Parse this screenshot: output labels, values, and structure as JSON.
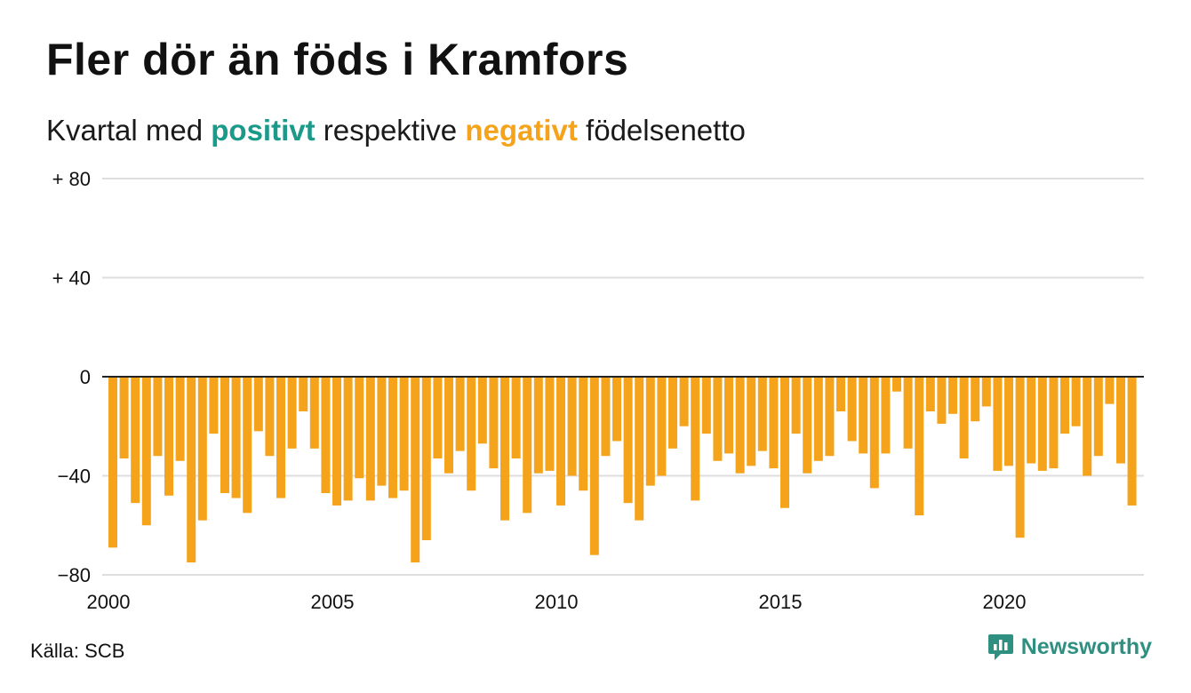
{
  "title": "Fler dör än föds i Kramfors",
  "subtitle": {
    "prefix": "Kvartal med ",
    "positive": "positivt",
    "middle": " respektive ",
    "negative": "negativt",
    "suffix": " födelsenetto"
  },
  "source": "Källa: SCB",
  "brand": "Newsworthy",
  "colors": {
    "bar": "#f5a31a",
    "positive": "#1b9a8a",
    "negative": "#f5a31a",
    "grid": "#dedede",
    "brand": "#2f8f80"
  },
  "chart_data": {
    "type": "bar",
    "x_start": "2000 Q1",
    "frequency": "quarterly",
    "values": [
      -69,
      -33,
      -51,
      -60,
      -32,
      -48,
      -34,
      -75,
      -58,
      -23,
      -47,
      -49,
      -55,
      -22,
      -32,
      -49,
      -29,
      -14,
      -29,
      -47,
      -52,
      -50,
      -41,
      -50,
      -44,
      -49,
      -46,
      -75,
      -66,
      -33,
      -39,
      -30,
      -46,
      -27,
      -37,
      -58,
      -33,
      -55,
      -39,
      -38,
      -52,
      -40,
      -46,
      -72,
      -32,
      -26,
      -51,
      -58,
      -44,
      -40,
      -29,
      -20,
      -50,
      -23,
      -34,
      -31,
      -39,
      -36,
      -30,
      -37,
      -53,
      -23,
      -39,
      -34,
      -32,
      -14,
      -26,
      -31,
      -45,
      -31,
      -6,
      -29,
      -56,
      -14,
      -19,
      -15,
      -33,
      -18,
      -12,
      -38,
      -36,
      -65,
      -35,
      -38,
      -37,
      -23,
      -20,
      -40,
      -32,
      -11,
      -35,
      -52
    ],
    "y_ticks": [
      {
        "value": 80,
        "label": "+ 80"
      },
      {
        "value": 40,
        "label": "+ 40"
      },
      {
        "value": 0,
        "label": "0"
      },
      {
        "value": -40,
        "label": "−40"
      },
      {
        "value": -80,
        "label": "−80"
      }
    ],
    "ylim": [
      -80,
      80
    ],
    "x_ticks": [
      "2000",
      "2005",
      "2010",
      "2015",
      "2020"
    ],
    "x_tick_years": [
      2000,
      2005,
      2010,
      2015,
      2020
    ],
    "xlim": [
      2000,
      2023
    ],
    "grid": true,
    "legend": "none"
  }
}
